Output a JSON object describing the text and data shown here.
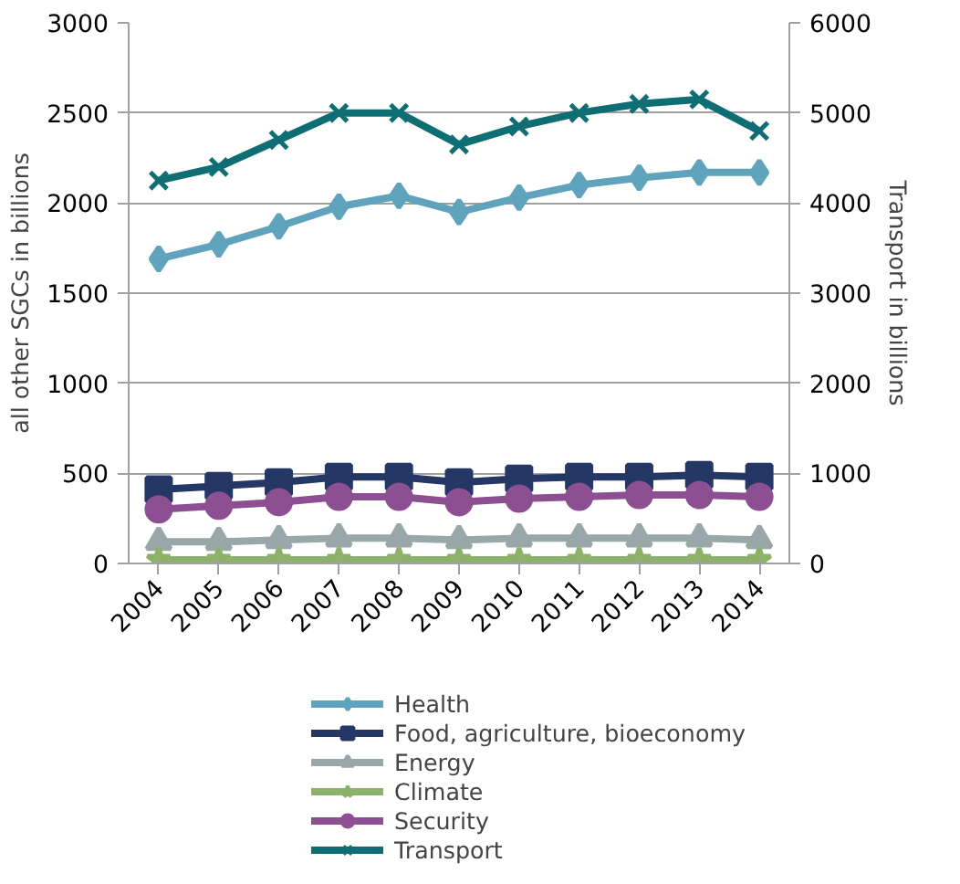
{
  "chart_data": {
    "type": "line",
    "ylabel": "all other SGCs in billions",
    "y2label": "Transport in billions",
    "categories": [
      "2004",
      "2005",
      "2006",
      "2007",
      "2008",
      "2009",
      "2010",
      "2011",
      "2012",
      "2013",
      "2014"
    ],
    "ylim": [
      0,
      3000
    ],
    "yticks": [
      0,
      500,
      1000,
      1500,
      2000,
      2500,
      3000
    ],
    "y2lim": [
      0,
      6000
    ],
    "y2ticks": [
      0,
      1000,
      2000,
      3000,
      4000,
      5000,
      6000
    ],
    "grid": "y",
    "legend": "bottom",
    "series": [
      {
        "name": "Health",
        "color": "#5fa3bd",
        "marker": "diamond",
        "values": [
          1690,
          1770,
          1870,
          1980,
          2040,
          1950,
          2030,
          2100,
          2140,
          2170,
          2170
        ]
      },
      {
        "name": "Food, agriculture, bioeconomy",
        "color": "#253765",
        "marker": "square",
        "values": [
          410,
          430,
          450,
          480,
          480,
          450,
          470,
          480,
          480,
          490,
          480
        ]
      },
      {
        "name": "Energy",
        "color": "#9aa7a9",
        "marker": "triangle",
        "values": [
          120,
          120,
          130,
          140,
          140,
          130,
          140,
          140,
          140,
          140,
          130
        ]
      },
      {
        "name": "Climate",
        "color": "#8cb26a",
        "marker": "star",
        "values": [
          20,
          20,
          20,
          20,
          20,
          20,
          20,
          20,
          20,
          20,
          20
        ]
      },
      {
        "name": "Security",
        "color": "#8c4f91",
        "marker": "circle",
        "values": [
          300,
          320,
          340,
          370,
          370,
          340,
          360,
          370,
          380,
          380,
          370
        ]
      },
      {
        "name": "Transport",
        "color": "#0f6e73",
        "marker": "cross",
        "axis": "y2",
        "values": [
          4250,
          4400,
          4700,
          5000,
          5000,
          4650,
          4850,
          5000,
          5100,
          5150,
          4800
        ]
      }
    ]
  }
}
